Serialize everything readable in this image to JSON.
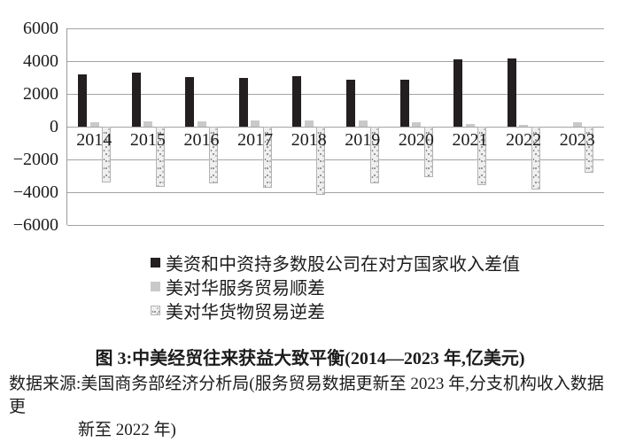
{
  "chart_data": {
    "type": "bar",
    "title": "图 3:中美经贸往来获益大致平衡(2014—2023 年,亿美元)",
    "value_unit": "亿美元",
    "categories": [
      "2014",
      "2015",
      "2016",
      "2017",
      "2018",
      "2019",
      "2020",
      "2021",
      "2022",
      "2023"
    ],
    "series": [
      {
        "name": "美资和中资持多数股公司在对方国家收入差值",
        "style": "solid-black",
        "color": "#231f20",
        "values": [
          3200,
          3300,
          3050,
          2950,
          3100,
          2840,
          2880,
          4100,
          4150,
          null
        ]
      },
      {
        "name": "美对华服务贸易顺差",
        "style": "solid-gray",
        "color": "#c9c9c9",
        "values": [
          260,
          300,
          340,
          380,
          390,
          360,
          250,
          150,
          130,
          270
        ]
      },
      {
        "name": "美对华货物贸易逆差",
        "style": "speckled",
        "color": "#efefef",
        "values": [
          -3430,
          -3670,
          -3470,
          -3750,
          -4180,
          -3450,
          -3100,
          -3550,
          -3830,
          -2790
        ]
      }
    ],
    "ylim": [
      -6000,
      6000
    ],
    "yticks": [
      {
        "value": 6000,
        "label": "6000"
      },
      {
        "value": 4000,
        "label": "4000"
      },
      {
        "value": 2000,
        "label": "2000"
      },
      {
        "value": 0,
        "label": "0"
      },
      {
        "value": -2000,
        "label": "−2000"
      },
      {
        "value": -4000,
        "label": "−4000"
      },
      {
        "value": -6000,
        "label": "−6000"
      }
    ],
    "grid": true,
    "legend_position": "below-left",
    "axis_color": "#9c9c9c"
  },
  "caption": {
    "title": "图 3:中美经贸往来获益大致平衡(2014—2023 年,亿美元)"
  },
  "source": {
    "line1": "数据来源:美国商务部经济分析局(服务贸易数据更新至 2023 年,分支机构收入数据更",
    "line2": "新至 2022 年)"
  }
}
